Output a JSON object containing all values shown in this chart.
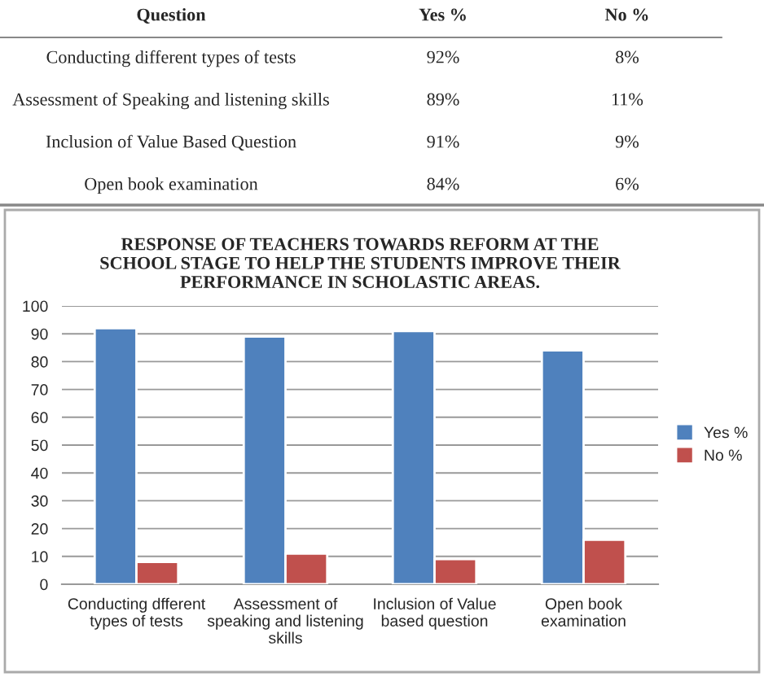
{
  "chart_data": {
    "type": "bar",
    "title": "RESPONSE OF TEACHERS TOWARDS REFORM AT THE\nSCHOOL STAGE TO HELP THE STUDENTS IMPROVE THEIR\nPERFORMANCE IN SCHOLASTIC AREAS.",
    "categories": [
      "Conducting dfferent\ntypes of tests",
      "Assessment of\nspeaking and listening\nskills",
      "Inclusion of Value\nbased question",
      "Open book\nexamination"
    ],
    "series": [
      {
        "name": "Yes %",
        "color": "#4f81bd",
        "values": [
          92,
          89,
          91,
          84
        ]
      },
      {
        "name": "No %",
        "color": "#c0504d",
        "values": [
          8,
          11,
          9,
          16
        ]
      }
    ],
    "ylim": [
      0,
      100
    ],
    "yticks": [
      0,
      10,
      20,
      30,
      40,
      50,
      60,
      70,
      80,
      90,
      100
    ],
    "grid": "y",
    "legend": "right",
    "annotations": [
      "Question",
      "Yes %",
      "No %",
      "Conducting different types of tests",
      "92%",
      "8%",
      "Assessment of Speaking and listening skills",
      "89%",
      "11%",
      "Inclusion of Value Based Question",
      "91%",
      "9%",
      "Open book examination",
      "84%",
      "6%"
    ]
  }
}
